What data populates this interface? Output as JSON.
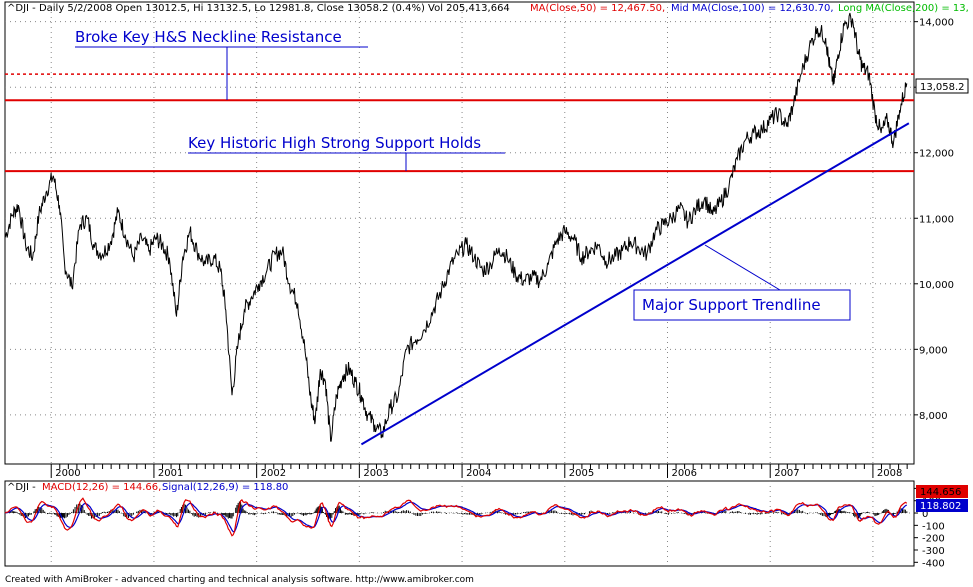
{
  "header": {
    "symbol": "^DJI",
    "main_text": "^DJI - Daily 5/2/2008 Open 13012.5, Hi 13132.5, Lo 12981.8, Close 13058.2 (0.4%) Vol 205,413,664",
    "ma50": "MA(Close,50) = 12,467.50,",
    "ma100": "Mid MA(Close,100) = 12,630.70,",
    "ma200": "Long MA(Close,200) = 13,",
    "colors": {
      "main": "#000000",
      "ma50": "#e00000",
      "ma100": "#0000cc",
      "ma200": "#00bb00"
    }
  },
  "annotations": {
    "neckline": "Broke Key H&S Neckline Resistance",
    "support_holds": "Key Historic High Strong Support Holds",
    "trendline": "Major Support Trendline"
  },
  "price_badge": "13,058.2",
  "macd": {
    "title_prefix": "^DJI -",
    "macd_label": "MACD(12,26) = 144.66,",
    "signal_label": "Signal(12,26,9) = 118.80",
    "macd_badge": "144.656",
    "signal_badge": "118.802",
    "colors": {
      "macd": "#e00000",
      "signal": "#0000cc",
      "histogram": "#000000"
    },
    "y_ticks": [
      "200",
      "100",
      "0",
      "-100",
      "-200",
      "-300",
      "-400"
    ]
  },
  "footer": "Created with AmiBroker - advanced charting and technical analysis software. http://www.amibroker.com",
  "chart_data": {
    "type": "line",
    "title": "^DJI - Daily 5/2/2008",
    "y_ticks": [
      8000,
      9000,
      10000,
      11000,
      12000,
      13000,
      14000
    ],
    "x_ticks": [
      "2000",
      "2001",
      "2002",
      "2003",
      "2004",
      "2005",
      "2006",
      "2007",
      "2008"
    ],
    "ylim": [
      7250,
      14300
    ],
    "xlim": [
      1999.55,
      2008.4
    ],
    "grid": true,
    "horizontal_levels": [
      {
        "name": "resistance_dotted",
        "value": 13200,
        "style": "dotted",
        "color": "#e00000"
      },
      {
        "name": "neckline",
        "value": 12800,
        "style": "solid",
        "color": "#e00000"
      },
      {
        "name": "historic_high_support",
        "value": 11720,
        "style": "solid",
        "color": "#e00000"
      }
    ],
    "trendline": {
      "from": [
        2003.02,
        7550
      ],
      "to": [
        2008.35,
        12450
      ],
      "color": "#0000cc"
    },
    "series": [
      {
        "name": "^DJI",
        "x": [
          1999.55,
          1999.62,
          1999.68,
          1999.75,
          1999.82,
          1999.88,
          1999.95,
          2000.02,
          2000.08,
          2000.13,
          2000.2,
          2000.28,
          2000.35,
          2000.42,
          2000.5,
          2000.58,
          2000.65,
          2000.72,
          2000.8,
          2000.88,
          2000.95,
          2001.02,
          2001.08,
          2001.15,
          2001.22,
          2001.28,
          2001.35,
          2001.42,
          2001.5,
          2001.58,
          2001.65,
          2001.7,
          2001.76,
          2001.82,
          2001.88,
          2001.95,
          2002.02,
          2002.1,
          2002.18,
          2002.25,
          2002.32,
          2002.4,
          2002.47,
          2002.53,
          2002.57,
          2002.62,
          2002.67,
          2002.72,
          2002.78,
          2002.84,
          2002.9,
          2002.96,
          2003.02,
          2003.08,
          2003.15,
          2003.22,
          2003.3,
          2003.38,
          2003.46,
          2003.55,
          2003.63,
          2003.72,
          2003.8,
          2003.88,
          2003.96,
          2004.04,
          2004.12,
          2004.2,
          2004.28,
          2004.36,
          2004.44,
          2004.52,
          2004.6,
          2004.68,
          2004.76,
          2004.84,
          2004.92,
          2005.0,
          2005.08,
          2005.16,
          2005.24,
          2005.32,
          2005.4,
          2005.48,
          2005.56,
          2005.64,
          2005.72,
          2005.8,
          2005.88,
          2005.96,
          2006.04,
          2006.12,
          2006.2,
          2006.28,
          2006.36,
          2006.44,
          2006.52,
          2006.6,
          2006.68,
          2006.76,
          2006.84,
          2006.92,
          2007.0,
          2007.08,
          2007.16,
          2007.22,
          2007.3,
          2007.38,
          2007.46,
          2007.54,
          2007.58,
          2007.62,
          2007.66,
          2007.72,
          2007.8,
          2007.86,
          2007.9,
          2007.96,
          2008.02,
          2008.08,
          2008.14,
          2008.2,
          2008.26,
          2008.33
        ],
        "y": [
          10700,
          11050,
          11200,
          10600,
          10400,
          11050,
          11400,
          11650,
          11200,
          10300,
          9950,
          10900,
          11000,
          10550,
          10450,
          10650,
          11100,
          10750,
          10400,
          10700,
          10500,
          10700,
          10600,
          10400,
          9500,
          10400,
          10800,
          10500,
          10300,
          10400,
          10200,
          9600,
          8300,
          9100,
          9600,
          9800,
          10000,
          10200,
          10450,
          10500,
          10000,
          9700,
          9000,
          8200,
          7900,
          8700,
          8500,
          7600,
          8300,
          8600,
          8700,
          8500,
          8300,
          8000,
          7850,
          7700,
          8100,
          8300,
          9000,
          9150,
          9300,
          9600,
          9900,
          10250,
          10450,
          10600,
          10400,
          10200,
          10300,
          10550,
          10400,
          10150,
          10050,
          10100,
          10050,
          10300,
          10650,
          10800,
          10700,
          10400,
          10500,
          10600,
          10350,
          10400,
          10500,
          10650,
          10550,
          10450,
          10800,
          10900,
          11000,
          11150,
          10950,
          11150,
          11300,
          11050,
          11250,
          11500,
          11900,
          12200,
          12300,
          12350,
          12500,
          12600,
          12400,
          12700,
          13200,
          13600,
          13900,
          13750,
          13300,
          13050,
          13500,
          13950,
          14050,
          13500,
          13300,
          13200,
          12600,
          12300,
          12500,
          12150,
          12650,
          13058
        ]
      }
    ],
    "macd_panel": {
      "ylim": [
        -430,
        260
      ],
      "y_ticks": [
        200,
        100,
        0,
        -100,
        -200,
        -300,
        -400
      ],
      "macd_last": 144.66,
      "signal_last": 118.8
    }
  }
}
